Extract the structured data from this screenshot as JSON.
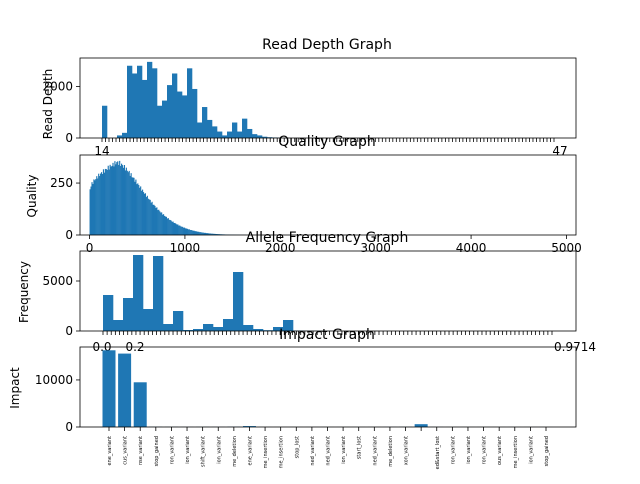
{
  "chart_data": [
    {
      "type": "bar",
      "title": "Read Depth Graph",
      "ylabel": "Read Depth",
      "ylim": [
        0,
        3100
      ],
      "yticks": [
        0,
        2000
      ],
      "ytick_labels": [
        "0",
        "2000"
      ],
      "x_edge_labels": [
        "14",
        "47"
      ],
      "color": "#1f77b4",
      "values": [
        1250,
        0,
        0,
        100,
        200,
        2800,
        2500,
        2800,
        2250,
        2950,
        2700,
        1250,
        1450,
        2050,
        2500,
        1800,
        1650,
        2700,
        1900,
        600,
        1200,
        700,
        450,
        250,
        100,
        250,
        600,
        250,
        750,
        350,
        150,
        100,
        50,
        30,
        20,
        10,
        5,
        0,
        0,
        0
      ]
    },
    {
      "type": "bar",
      "title": "Quality Graph",
      "ylabel": "Quality",
      "xlim": [
        -100,
        5100
      ],
      "ylim": [
        0,
        385
      ],
      "xticks": [
        0,
        1000,
        2000,
        3000,
        4000,
        5000
      ],
      "xtick_labels": [
        "0",
        "1000",
        "2000",
        "3000",
        "4000",
        "5000"
      ],
      "yticks": [
        0,
        250
      ],
      "ytick_labels": [
        "0",
        "250"
      ],
      "color": "#1f77b4",
      "peak_x": 280,
      "peak_y": 350
    },
    {
      "type": "bar",
      "title": "Allele Frequency Graph",
      "ylabel": "Frequency",
      "ylim": [
        0,
        8000
      ],
      "yticks": [
        0,
        5000
      ],
      "ytick_labels": [
        "0",
        "5000"
      ],
      "x_edge_labels": [
        "0.0",
        "0.2",
        "0.9714"
      ],
      "color": "#1f77b4",
      "values": [
        3600,
        1100,
        3300,
        7600,
        2200,
        7500,
        700,
        2000,
        100,
        200,
        700,
        400,
        1200,
        5900,
        600,
        200,
        80,
        400,
        1100,
        50,
        30,
        20,
        10
      ]
    },
    {
      "type": "bar",
      "title": "Impact Graph",
      "ylabel": "Impact",
      "ylim": [
        0,
        17000
      ],
      "yticks": [
        0,
        10000
      ],
      "ytick_labels": [
        "0",
        "10000"
      ],
      "color": "#1f77b4",
      "categories": [
        "ene_variant",
        "cus_variant",
        "nse_variant",
        "stop_gained",
        "ron_variant",
        "ion_variant",
        "shift_variant",
        "ion_variant",
        "me_deletion",
        "ene_variant",
        "me_insertion",
        "me_insertion",
        "stop_lost",
        "ned_variant",
        "ned_variant",
        "ion_variant",
        "start_lost",
        "ned_variant",
        "me_deletion",
        "xon_variant",
        "",
        "ed&start_lost",
        "ron_variant",
        "ion_variant",
        "ron_variant",
        "ous_variant",
        "me_insertion",
        "ion_variant",
        "stop_gained"
      ],
      "values": [
        16300,
        15600,
        9500,
        40,
        30,
        20,
        30,
        20,
        50,
        200,
        10,
        10,
        10,
        10,
        10,
        10,
        10,
        10,
        20,
        30,
        600,
        20,
        10,
        10,
        10,
        10,
        10,
        10,
        10
      ]
    }
  ]
}
